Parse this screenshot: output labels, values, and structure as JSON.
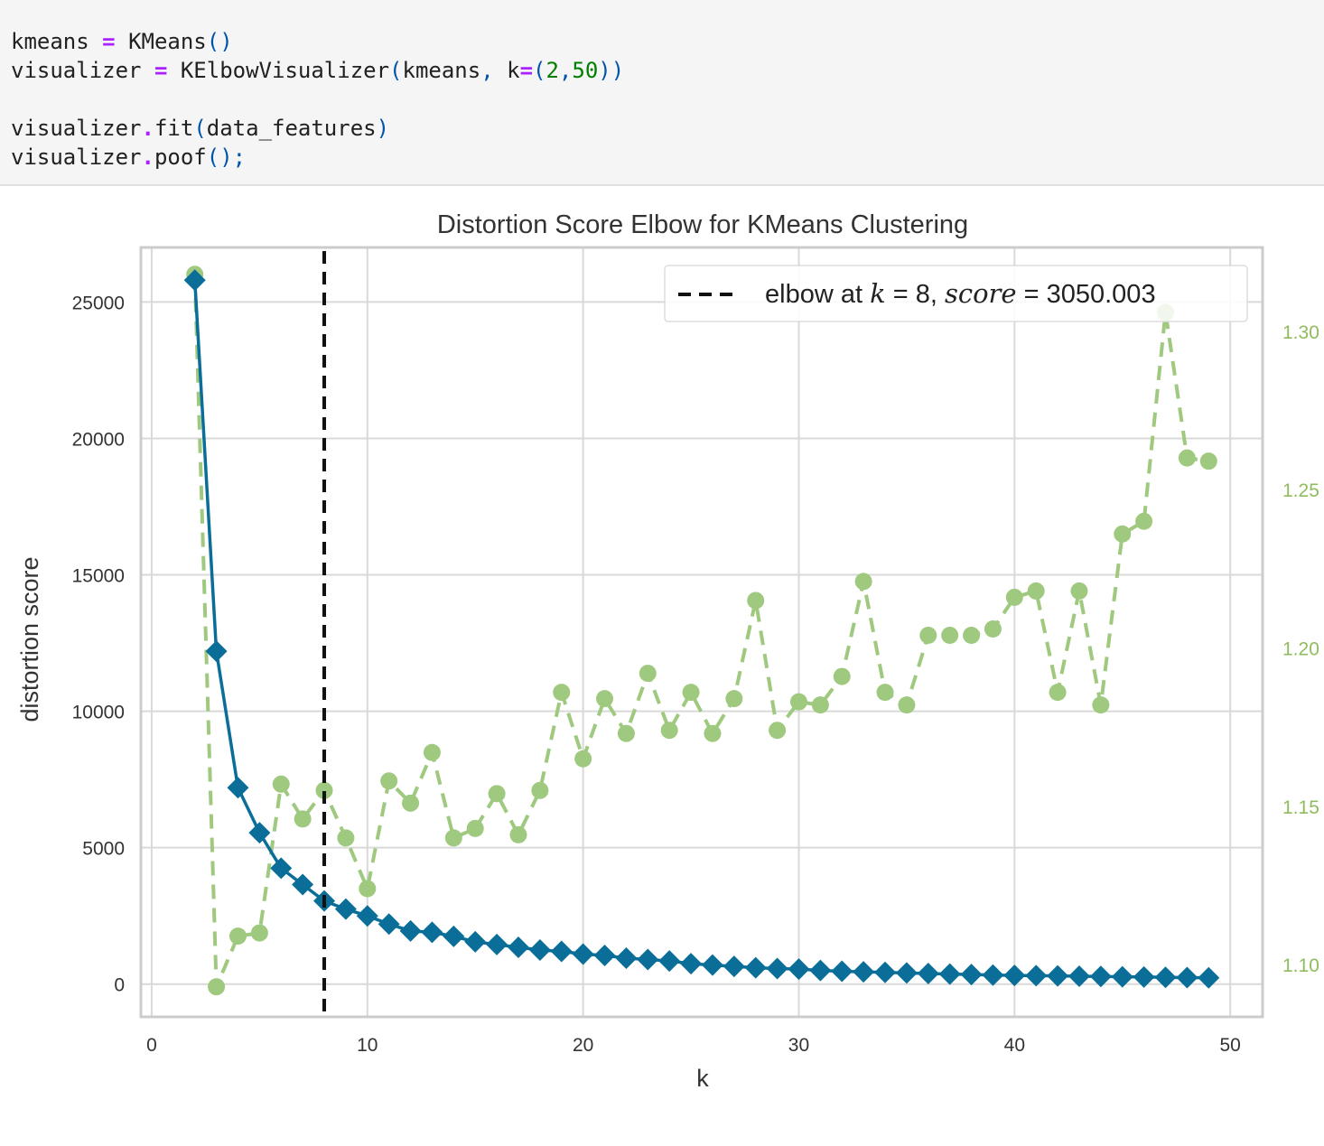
{
  "code": {
    "line1": {
      "var": "kmeans",
      "op": "=",
      "call": "KMeans",
      "paren": "()"
    },
    "line2": {
      "var": "visualizer",
      "op": "=",
      "call": "KElbowVisualizer",
      "arg1": "kmeans",
      "kw": "k",
      "kw_op": "=",
      "n1": "2",
      "n2": "50"
    },
    "line4": {
      "obj": "visualizer",
      "dot": ".",
      "method": "fit",
      "arg": "data_features"
    },
    "line5": {
      "obj": "visualizer",
      "dot": ".",
      "method": "poof",
      "tail": "();"
    }
  },
  "chart_data": {
    "type": "line",
    "title": "Distortion Score Elbow for KMeans Clustering",
    "xlabel": "k",
    "ylabel": "distortion score",
    "xlim": [
      -0.5,
      51.5
    ],
    "ylim": [
      -1200,
      27000
    ],
    "x_ticks": [
      0,
      10,
      20,
      30,
      40,
      50
    ],
    "y_ticks": [
      0,
      5000,
      10000,
      15000,
      20000,
      25000
    ],
    "grid": true,
    "legend_position": "top-right",
    "legend": {
      "prefix": "elbow at ",
      "k_sym": "k",
      "k_mid": " = 8, ",
      "score_sym": "score",
      "score_val": " = 3050.003"
    },
    "elbow": {
      "k": 8,
      "score": 3050.003
    },
    "secondary_axis": {
      "ylim": [
        1.0835,
        1.3265
      ],
      "ticks": [
        1.1,
        1.15,
        1.2,
        1.25,
        1.3
      ],
      "tick_labels": [
        "1.10",
        "1.15",
        "1.20",
        "1.25",
        "1.30"
      ]
    },
    "series": [
      {
        "color": "#0a6e99",
        "marker": "diamond",
        "x": [
          2,
          3,
          4,
          5,
          6,
          7,
          8,
          9,
          10,
          11,
          12,
          13,
          14,
          15,
          16,
          17,
          18,
          19,
          20,
          21,
          22,
          23,
          24,
          25,
          26,
          27,
          28,
          29,
          30,
          31,
          32,
          33,
          34,
          35,
          36,
          37,
          38,
          39,
          40,
          41,
          42,
          43,
          44,
          45,
          46,
          47,
          48,
          49
        ],
        "values": [
          25800,
          12200,
          7200,
          5550,
          4250,
          3650,
          3050,
          2750,
          2500,
          2200,
          1950,
          1900,
          1750,
          1550,
          1450,
          1350,
          1250,
          1200,
          1100,
          1050,
          950,
          900,
          850,
          750,
          700,
          650,
          600,
          570,
          550,
          500,
          470,
          450,
          430,
          410,
          390,
          370,
          350,
          330,
          320,
          310,
          300,
          290,
          280,
          270,
          260,
          250,
          240,
          230
        ]
      },
      {
        "color": "#9fc97f",
        "marker": "circle",
        "style": "dashed",
        "axis": "secondary",
        "x": [
          2,
          3,
          4,
          5,
          6,
          7,
          8,
          9,
          10,
          11,
          12,
          13,
          14,
          15,
          16,
          17,
          18,
          19,
          20,
          21,
          22,
          23,
          24,
          25,
          26,
          27,
          28,
          29,
          30,
          31,
          32,
          33,
          34,
          35,
          36,
          37,
          38,
          39,
          40,
          41,
          42,
          43,
          44,
          45,
          46,
          47,
          48,
          49
        ],
        "values": [
          1.318,
          1.093,
          1.109,
          1.11,
          1.157,
          1.146,
          1.155,
          1.14,
          1.124,
          1.158,
          1.151,
          1.167,
          1.14,
          1.143,
          1.154,
          1.141,
          1.155,
          1.186,
          1.165,
          1.184,
          1.173,
          1.192,
          1.174,
          1.186,
          1.173,
          1.184,
          1.215,
          1.174,
          1.183,
          1.182,
          1.191,
          1.221,
          1.186,
          1.182,
          1.204,
          1.204,
          1.204,
          1.206,
          1.216,
          1.218,
          1.186,
          1.218,
          1.182,
          1.236,
          1.24,
          1.306,
          1.26,
          1.259
        ]
      }
    ]
  }
}
